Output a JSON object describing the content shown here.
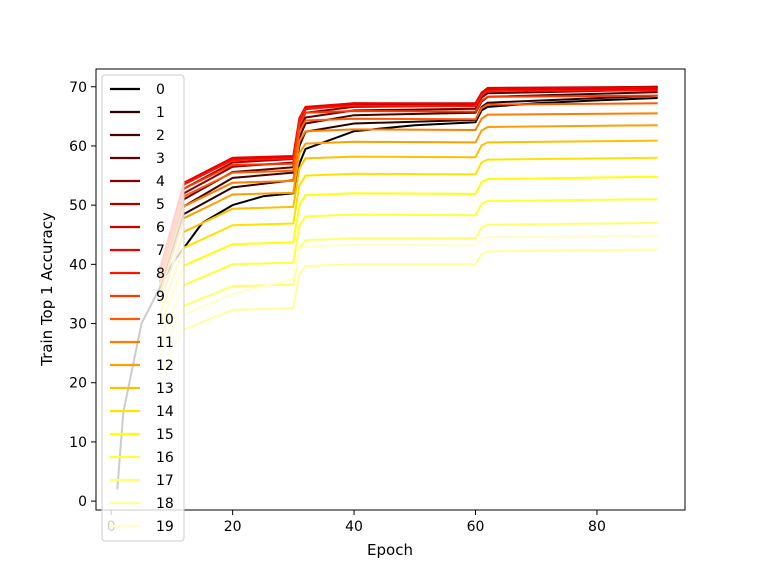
{
  "chart_data": {
    "type": "line",
    "title": "",
    "xlabel": "Epoch",
    "ylabel": "Train Top 1 Accuracy",
    "xlim": [
      -2.5,
      94.5
    ],
    "ylim": [
      -1.5,
      73
    ],
    "xticks": [
      0,
      20,
      40,
      60,
      80
    ],
    "yticks": [
      0,
      10,
      20,
      30,
      40,
      50,
      60,
      70
    ],
    "grid": false,
    "legend_placement": "upper-left",
    "colormap": "hot",
    "series": [
      {
        "name": "0",
        "color": "#000000",
        "x": [
          1,
          2,
          5,
          10,
          15,
          20,
          25,
          30,
          31,
          32,
          40,
          50,
          60,
          61,
          62,
          70,
          80,
          90
        ],
        "y": [
          2.0,
          15.0,
          30.0,
          40.0,
          47.0,
          50.0,
          51.5,
          52.0,
          57.0,
          59.5,
          62.5,
          63.5,
          64.0,
          66.0,
          66.6,
          67.2,
          67.7,
          68.1
        ]
      },
      {
        "name": "1",
        "color": "#2d0000",
        "x": [
          8,
          12,
          20,
          30,
          31,
          32,
          40,
          60,
          61,
          62,
          90
        ],
        "y": [
          35.0,
          48.5,
          53.0,
          54.2,
          60.0,
          62.4,
          63.8,
          64.4,
          66.6,
          67.3,
          68.5
        ]
      },
      {
        "name": "2",
        "color": "#450000",
        "x": [
          8,
          12,
          20,
          30,
          31,
          32,
          40,
          60,
          61,
          62,
          90
        ],
        "y": [
          36.0,
          49.8,
          54.6,
          55.5,
          61.4,
          63.8,
          65.2,
          65.6,
          67.5,
          68.3,
          69.1
        ]
      },
      {
        "name": "3",
        "color": "#650000",
        "x": [
          8,
          12,
          20,
          30,
          31,
          32,
          40,
          60,
          61,
          62,
          90
        ],
        "y": [
          37.0,
          51.0,
          55.6,
          56.4,
          62.5,
          64.8,
          66.0,
          66.3,
          68.2,
          68.9,
          69.5
        ]
      },
      {
        "name": "4",
        "color": "#8a0000",
        "x": [
          8,
          12,
          20,
          30,
          31,
          32,
          40,
          60,
          61,
          62,
          90
        ],
        "y": [
          37.5,
          52.0,
          56.5,
          57.2,
          63.3,
          65.6,
          66.6,
          66.8,
          68.6,
          69.3,
          69.8
        ]
      },
      {
        "name": "5",
        "color": "#ac0000",
        "x": [
          8,
          12,
          20,
          30,
          31,
          32,
          40,
          60,
          61,
          62,
          90
        ],
        "y": [
          38.0,
          52.8,
          57.2,
          57.8,
          64.0,
          66.2,
          67.0,
          67.1,
          68.9,
          69.6,
          70.0
        ]
      },
      {
        "name": "6",
        "color": "#cc0000",
        "x": [
          8,
          12,
          20,
          30,
          31,
          32,
          40,
          60,
          61,
          62,
          90
        ],
        "y": [
          38.5,
          53.5,
          57.7,
          58.2,
          64.5,
          66.5,
          67.2,
          67.2,
          69.0,
          69.8,
          70.0
        ]
      },
      {
        "name": "7",
        "color": "#ec0000",
        "x": [
          8,
          12,
          20,
          30,
          31,
          32,
          40,
          60,
          61,
          62,
          90
        ],
        "y": [
          39.0,
          53.8,
          58.0,
          58.3,
          64.7,
          66.6,
          67.2,
          67.1,
          69.0,
          69.7,
          69.8
        ]
      },
      {
        "name": "8",
        "color": "#ff1400",
        "x": [
          8,
          12,
          20,
          30,
          31,
          32,
          40,
          60,
          61,
          62,
          90
        ],
        "y": [
          39.0,
          53.5,
          57.6,
          57.9,
          64.4,
          66.3,
          66.8,
          66.7,
          68.6,
          69.3,
          69.4
        ]
      },
      {
        "name": "9",
        "color": "#ff3800",
        "x": [
          8,
          12,
          20,
          30,
          31,
          32,
          40,
          60,
          61,
          62,
          90
        ],
        "y": [
          38.5,
          52.8,
          56.8,
          57.0,
          63.6,
          65.6,
          65.9,
          65.8,
          67.7,
          68.3,
          68.5
        ]
      },
      {
        "name": "10",
        "color": "#ff5a00",
        "x": [
          8,
          12,
          20,
          30,
          31,
          32,
          40,
          60,
          61,
          62,
          90
        ],
        "y": [
          37.5,
          51.5,
          55.5,
          55.8,
          62.4,
          64.3,
          64.6,
          64.5,
          66.4,
          67.0,
          67.2
        ]
      },
      {
        "name": "11",
        "color": "#ff7c00",
        "x": [
          8,
          12,
          20,
          30,
          31,
          32,
          40,
          60,
          61,
          62,
          90
        ],
        "y": [
          36.5,
          49.8,
          53.8,
          54.1,
          60.8,
          62.5,
          62.8,
          62.7,
          64.6,
          65.3,
          65.5
        ]
      },
      {
        "name": "12",
        "color": "#ff9e00",
        "x": [
          8,
          12,
          20,
          30,
          31,
          32,
          40,
          60,
          61,
          62,
          90
        ],
        "y": [
          35.0,
          47.8,
          51.8,
          52.1,
          58.7,
          60.4,
          60.7,
          60.6,
          62.6,
          63.2,
          63.5
        ]
      },
      {
        "name": "13",
        "color": "#ffc000",
        "x": [
          8,
          12,
          20,
          30,
          31,
          32,
          40,
          60,
          61,
          62,
          90
        ],
        "y": [
          33.5,
          45.5,
          49.4,
          49.7,
          56.2,
          57.9,
          58.2,
          58.1,
          60.1,
          60.6,
          60.9
        ]
      },
      {
        "name": "14",
        "color": "#ffe200",
        "x": [
          8,
          12,
          20,
          30,
          31,
          32,
          40,
          60,
          61,
          62,
          90
        ],
        "y": [
          31.5,
          42.8,
          46.6,
          46.9,
          53.3,
          55.0,
          55.3,
          55.2,
          57.2,
          57.7,
          58.0
        ]
      },
      {
        "name": "15",
        "color": "#ffff0a",
        "x": [
          8,
          12,
          20,
          30,
          31,
          32,
          40,
          60,
          61,
          62,
          90
        ],
        "y": [
          29.5,
          39.8,
          43.4,
          43.7,
          50.0,
          51.7,
          52.0,
          51.9,
          53.9,
          54.4,
          54.8
        ]
      },
      {
        "name": "16",
        "color": "#ffff3a",
        "x": [
          8,
          12,
          20,
          30,
          31,
          32,
          40,
          60,
          61,
          62,
          90
        ],
        "y": [
          27.0,
          36.5,
          40.0,
          40.3,
          46.5,
          48.1,
          48.4,
          48.3,
          50.2,
          50.7,
          51.0
        ]
      },
      {
        "name": "17",
        "color": "#ffff6a",
        "x": [
          8,
          12,
          20,
          30,
          31,
          32,
          40,
          60,
          61,
          62,
          90
        ],
        "y": [
          24.5,
          33.0,
          36.3,
          36.6,
          42.6,
          44.1,
          44.4,
          44.4,
          46.2,
          46.7,
          47.0
        ]
      },
      {
        "name": "18",
        "color": "#ffff9a",
        "x": [
          8,
          12,
          20,
          30,
          31,
          32,
          40,
          60,
          61,
          62,
          90
        ],
        "y": [
          21.5,
          29.0,
          32.3,
          32.6,
          38.3,
          39.7,
          40.0,
          40.0,
          41.7,
          42.2,
          42.5
        ]
      },
      {
        "name": "19",
        "color": "#ffffca",
        "x": [
          8,
          12,
          20,
          30,
          31,
          32,
          40,
          60,
          61,
          62,
          90
        ],
        "y": [
          18.0,
          31.5,
          35.0,
          37.5,
          42.5,
          43.0,
          43.3,
          43.2,
          44.3,
          44.6,
          44.8
        ]
      }
    ]
  }
}
